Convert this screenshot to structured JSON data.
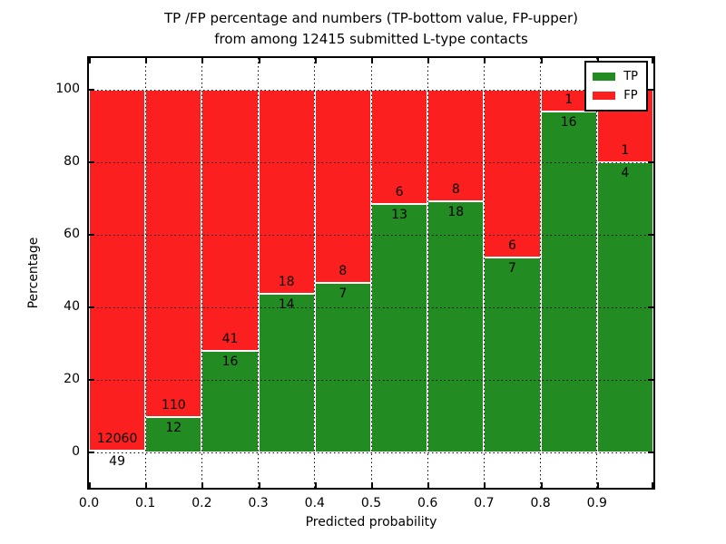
{
  "figure": {
    "title": "TP /FP percentage and numbers (TP-bottom value, FP-upper)",
    "subtitle": "from among 12415 submitted L-type contacts"
  },
  "chart_data": {
    "type": "bar",
    "stacked": true,
    "normalized_to_percent": true,
    "title": "TP /FP percentage and numbers (TP-bottom value, FP-upper) from among 12415 submitted L-type contacts",
    "xlabel": "Predicted probability",
    "ylabel": "Percentage",
    "categories": [
      "0.0-0.1",
      "0.1-0.2",
      "0.2-0.3",
      "0.3-0.4",
      "0.4-0.5",
      "0.5-0.6",
      "0.6-0.7",
      "0.7-0.8",
      "0.8-0.9",
      "0.9-1.0"
    ],
    "series": [
      {
        "name": "TP",
        "color": "#228b22",
        "values": [
          49,
          12,
          16,
          14,
          7,
          13,
          18,
          7,
          16,
          4
        ]
      },
      {
        "name": "FP",
        "color": "#fb1f1f",
        "values": [
          12060,
          110,
          41,
          18,
          8,
          6,
          8,
          6,
          1,
          1
        ]
      }
    ],
    "total_submitted": 12415,
    "xticks": [
      "0.0",
      "0.1",
      "0.2",
      "0.3",
      "0.4",
      "0.5",
      "0.6",
      "0.7",
      "0.8",
      "0.9"
    ],
    "yticks": [
      0,
      20,
      40,
      60,
      80,
      100
    ],
    "xlim": [
      0.0,
      1.0
    ],
    "ylim": [
      -10,
      109
    ],
    "grid": "dotted black, on top of bars",
    "bar_edge_color": "#ffffff",
    "legend_position": "upper right",
    "note": "labels on bars: TP count below segment boundary, FP count above boundary"
  }
}
